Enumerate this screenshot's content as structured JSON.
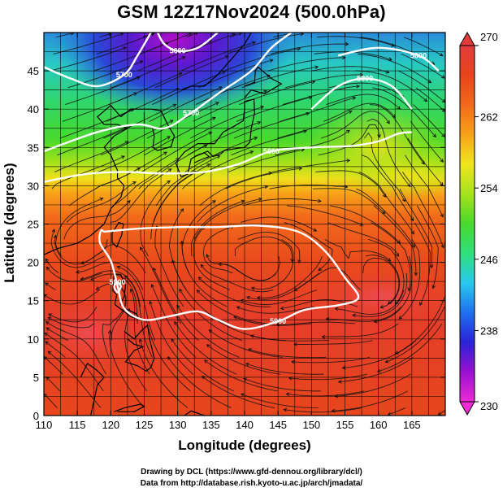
{
  "chart_data": {
    "type": "heatmap",
    "title": "GSM 12Z17Nov2024 (500.0hPa)",
    "xlabel": "Longitude (degrees)",
    "ylabel": "Latitude  (degrees)",
    "xlim": [
      110,
      170
    ],
    "ylim": [
      0,
      50
    ],
    "x_ticks": [
      "110",
      "115",
      "120",
      "125",
      "130",
      "135",
      "140",
      "145",
      "150",
      "155",
      "160",
      "165"
    ],
    "y_ticks": [
      "0",
      "5",
      "10",
      "15",
      "20",
      "25",
      "30",
      "35",
      "40",
      "45"
    ],
    "colorbar": {
      "min": 230,
      "max": 270,
      "ticks": [
        "230",
        "238",
        "246",
        "254",
        "262",
        "270"
      ],
      "colors": [
        "#ee2bd6",
        "#9a10d0",
        "#2a22d6",
        "#1f70f0",
        "#27c9ee",
        "#2fe07a",
        "#49d92c",
        "#a5e21a",
        "#efe61b",
        "#f8a218",
        "#f26a1a",
        "#e8431d",
        "#e23c3b"
      ]
    },
    "contours": [
      {
        "label": "5700",
        "points": [
          [
            110,
            34.5
          ],
          [
            118,
            37
          ],
          [
            124,
            38
          ],
          [
            128,
            37.5
          ],
          [
            132,
            39.5
          ],
          [
            136,
            42
          ],
          [
            141,
            45
          ],
          [
            144,
            48
          ],
          [
            147,
            50
          ]
        ]
      },
      {
        "label": "5800",
        "points": [
          [
            110,
            30.5
          ],
          [
            116,
            31.5
          ],
          [
            122,
            31.8
          ],
          [
            128,
            31.6
          ],
          [
            134,
            31.8
          ],
          [
            139,
            32.8
          ],
          [
            144,
            34.5
          ],
          [
            150,
            35
          ],
          [
            156,
            35.2
          ],
          [
            160,
            35.8
          ],
          [
            163,
            36.8
          ],
          [
            165,
            37
          ]
        ]
      },
      {
        "label": "5800",
        "points": [
          [
            150,
            40
          ],
          [
            154,
            43
          ],
          [
            158,
            44
          ],
          [
            162,
            43
          ],
          [
            165,
            40
          ]
        ]
      },
      {
        "label": "5800",
        "points": [
          [
            154,
            47
          ],
          [
            160,
            48
          ],
          [
            166,
            47
          ],
          [
            169,
            45
          ]
        ]
      },
      {
        "label": "5900",
        "points": [
          [
            119,
            24
          ],
          [
            124,
            24.4
          ],
          [
            130,
            24.6
          ],
          [
            136,
            24.6
          ],
          [
            142,
            24.8
          ],
          [
            148,
            24
          ],
          [
            152,
            21.5
          ],
          [
            155,
            18
          ],
          [
            157,
            15.4
          ],
          [
            154,
            14.4
          ],
          [
            149,
            13.8
          ],
          [
            145,
            12.3
          ],
          [
            140,
            11.3
          ],
          [
            136,
            12.5
          ],
          [
            133,
            13.6
          ],
          [
            129,
            13
          ],
          [
            125,
            12.5
          ],
          [
            122,
            14
          ],
          [
            121,
            17
          ],
          [
            120,
            20.2
          ],
          [
            118.4,
            22.5
          ],
          [
            118.5,
            24.1
          ],
          [
            119,
            24
          ]
        ]
      },
      {
        "label": "5900",
        "points": [
          [
            121,
            16
          ],
          [
            121.5,
            16.8
          ],
          [
            121,
            17.4
          ],
          [
            120.5,
            16.8
          ],
          [
            121,
            16
          ]
        ]
      },
      {
        "label": "5600",
        "points": [
          [
            127,
            50
          ],
          [
            128,
            48.5
          ],
          [
            130,
            47.6
          ],
          [
            133,
            48
          ],
          [
            136,
            50
          ]
        ]
      },
      {
        "label": "5700",
        "points": [
          [
            110,
            45.5
          ],
          [
            114,
            44
          ],
          [
            118,
            43
          ],
          [
            122,
            44.5
          ],
          [
            124,
            47
          ],
          [
            126,
            50
          ]
        ]
      }
    ],
    "vortices": [
      {
        "lon": 159,
        "lat": 38.5,
        "rotation": "anticyclonic"
      },
      {
        "lon": 135,
        "lat": 20.5,
        "rotation": "anticyclonic"
      },
      {
        "lon": 143,
        "lat": 20,
        "rotation": "anticyclonic"
      },
      {
        "lon": 161,
        "lat": 17,
        "rotation": "anticyclonic"
      },
      {
        "lon": 115,
        "lat": 22,
        "rotation": "anticyclonic"
      },
      {
        "lon": 121,
        "lat": 15.5,
        "rotation": "cyclonic"
      }
    ],
    "grid": true
  },
  "credits": {
    "line1": "Drawing by DCL (https://www.gfd-dennou.org/library/dcl/)",
    "line2": "Data from http://database.rish.kyoto-u.ac.jp/arch/jmadata/"
  }
}
